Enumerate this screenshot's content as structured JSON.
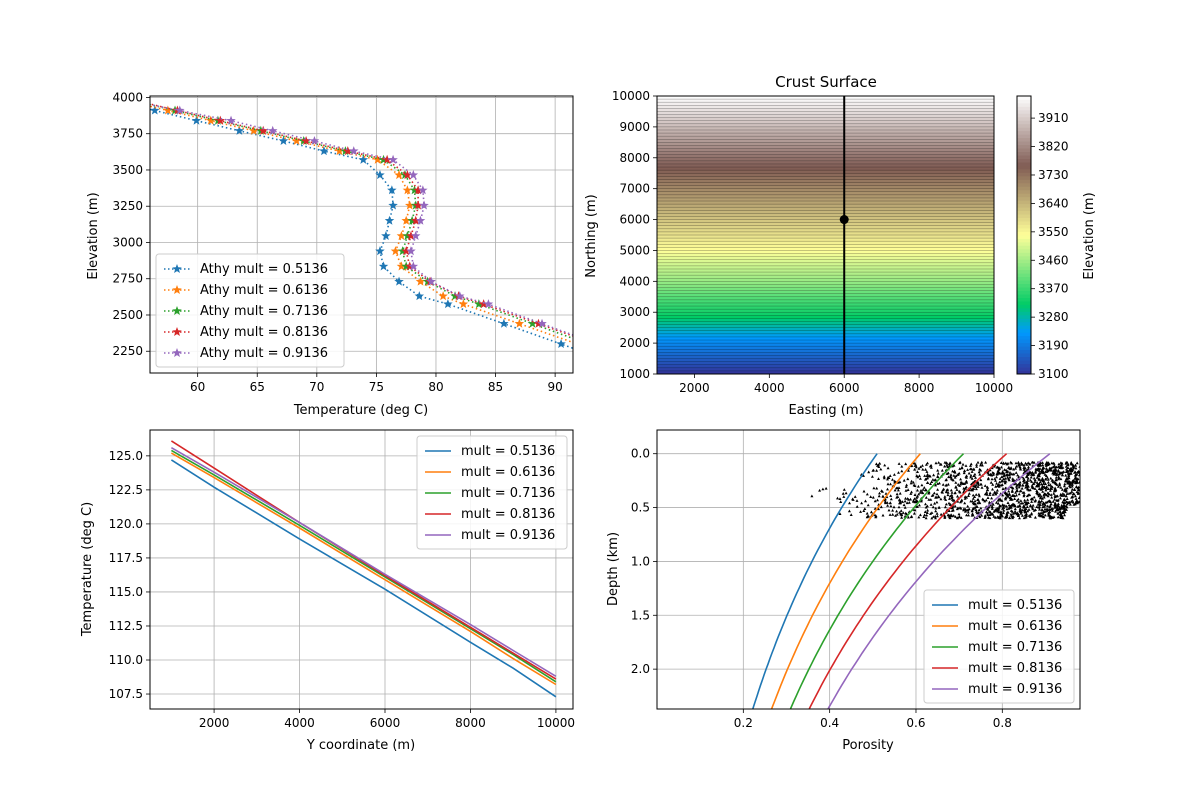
{
  "chart_data": [
    {
      "type": "line",
      "xlabel": "Temperature (deg C)",
      "ylabel": "Elevation (m)",
      "xlim": [
        56,
        91.5
      ],
      "ylim": [
        2100,
        4010
      ],
      "xticks": [
        60,
        65,
        70,
        75,
        80,
        85,
        90
      ],
      "yticks": [
        2250,
        2500,
        2750,
        3000,
        3250,
        3500,
        3750,
        4000
      ],
      "grid": true,
      "legend": "lower-left",
      "marker": "star",
      "linestyle": "dotted",
      "series": [
        {
          "name": "Athy mult = 0.5136",
          "color": "#1f77b4",
          "points": [
            [
              56.4,
              3910
            ],
            [
              59.9,
              3840
            ],
            [
              63.5,
              3770
            ],
            [
              67.2,
              3700
            ],
            [
              70.6,
              3630
            ],
            [
              73.9,
              3570
            ],
            [
              75.3,
              3465
            ],
            [
              76.3,
              3360
            ],
            [
              76.4,
              3255
            ],
            [
              76.1,
              3150
            ],
            [
              75.8,
              3045
            ],
            [
              75.3,
              2940
            ],
            [
              75.6,
              2835
            ],
            [
              76.9,
              2730
            ],
            [
              78.6,
              2630
            ],
            [
              81.0,
              2575
            ],
            [
              85.7,
              2440
            ],
            [
              90.5,
              2300
            ]
          ]
        },
        {
          "name": "Athy mult = 0.6136",
          "color": "#ff7f0e",
          "points": [
            [
              57.5,
              3910
            ],
            [
              61.1,
              3840
            ],
            [
              64.7,
              3770
            ],
            [
              68.3,
              3700
            ],
            [
              71.9,
              3630
            ],
            [
              75.1,
              3570
            ],
            [
              76.9,
              3465
            ],
            [
              77.6,
              3360
            ],
            [
              77.8,
              3255
            ],
            [
              77.5,
              3150
            ],
            [
              77.1,
              3045
            ],
            [
              76.6,
              2940
            ],
            [
              77.1,
              2835
            ],
            [
              78.7,
              2730
            ],
            [
              80.6,
              2630
            ],
            [
              82.3,
              2575
            ],
            [
              87.0,
              2440
            ]
          ]
        },
        {
          "name": "Athy mult = 0.7136",
          "color": "#2ca02c",
          "points": [
            [
              58.1,
              3910
            ],
            [
              61.7,
              3840
            ],
            [
              65.3,
              3770
            ],
            [
              68.9,
              3700
            ],
            [
              72.4,
              3630
            ],
            [
              75.6,
              3570
            ],
            [
              77.4,
              3465
            ],
            [
              78.2,
              3360
            ],
            [
              78.3,
              3255
            ],
            [
              78.0,
              3150
            ],
            [
              77.6,
              3045
            ],
            [
              77.2,
              2940
            ],
            [
              77.5,
              2835
            ],
            [
              79.3,
              2730
            ],
            [
              81.6,
              2630
            ],
            [
              83.6,
              2575
            ],
            [
              88.1,
              2440
            ]
          ]
        },
        {
          "name": "Athy mult = 0.8136",
          "color": "#d62728",
          "points": [
            [
              58.3,
              3910
            ],
            [
              61.9,
              3840
            ],
            [
              65.5,
              3770
            ],
            [
              69.1,
              3700
            ],
            [
              72.6,
              3630
            ],
            [
              75.9,
              3570
            ],
            [
              77.6,
              3465
            ],
            [
              78.5,
              3360
            ],
            [
              78.5,
              3255
            ],
            [
              78.3,
              3150
            ],
            [
              77.9,
              3045
            ],
            [
              77.5,
              2940
            ],
            [
              77.8,
              2835
            ],
            [
              79.5,
              2730
            ],
            [
              81.9,
              2630
            ],
            [
              84.0,
              2575
            ],
            [
              88.6,
              2440
            ]
          ]
        },
        {
          "name": "Athy mult = 0.9136",
          "color": "#9467bd",
          "points": [
            [
              58.5,
              3910
            ],
            [
              62.8,
              3840
            ],
            [
              66.3,
              3770
            ],
            [
              69.8,
              3700
            ],
            [
              73.1,
              3630
            ],
            [
              76.4,
              3570
            ],
            [
              78.1,
              3465
            ],
            [
              78.9,
              3360
            ],
            [
              79.0,
              3255
            ],
            [
              78.7,
              3150
            ],
            [
              78.3,
              3045
            ],
            [
              77.9,
              2940
            ],
            [
              78.1,
              2835
            ],
            [
              79.6,
              2730
            ],
            [
              82.0,
              2630
            ],
            [
              84.4,
              2575
            ],
            [
              88.9,
              2440
            ]
          ]
        }
      ]
    },
    {
      "type": "heatmap",
      "title": "Crust Surface",
      "xlabel": "Easting (m)",
      "ylabel": "Northing (m)",
      "xlim": [
        1000,
        10000
      ],
      "ylim": [
        1000,
        10000
      ],
      "xticks": [
        2000,
        4000,
        6000,
        8000,
        10000
      ],
      "yticks": [
        1000,
        2000,
        3000,
        4000,
        5000,
        6000,
        7000,
        8000,
        9000,
        10000
      ],
      "colorbar": {
        "label": "Elevation (m)",
        "range": [
          3100,
          3980
        ],
        "ticks": [
          3100,
          3190,
          3280,
          3370,
          3460,
          3550,
          3640,
          3730,
          3820,
          3910
        ],
        "colormap": "terrain"
      },
      "surface_profile": {
        "northing": [
          1000,
          2000,
          3000,
          4000,
          5000,
          6000,
          7000,
          8000,
          9000,
          10000
        ],
        "elevation": [
          3100,
          3210,
          3340,
          3450,
          3540,
          3620,
          3700,
          3790,
          3890,
          3980
        ]
      },
      "section_line_easting": 6000,
      "point": [
        6000,
        6000
      ]
    },
    {
      "type": "line",
      "xlabel": "Y coordinate (m)",
      "ylabel": "Temperature (deg C)",
      "xlim": [
        500,
        10400
      ],
      "ylim": [
        106.4,
        126.9
      ],
      "xticks": [
        2000,
        4000,
        6000,
        8000,
        10000
      ],
      "yticks": [
        107.5,
        110.0,
        112.5,
        115.0,
        117.5,
        120.0,
        122.5,
        125.0
      ],
      "grid": true,
      "legend": "upper-right",
      "series": [
        {
          "name": "mult = 0.5136",
          "color": "#1f77b4",
          "points": [
            [
              1000,
              124.7
            ],
            [
              2000,
              122.7
            ],
            [
              4000,
              118.9
            ],
            [
              6000,
              115.2
            ],
            [
              8000,
              111.3
            ],
            [
              9000,
              109.4
            ],
            [
              10000,
              107.3
            ]
          ]
        },
        {
          "name": "mult = 0.6136",
          "color": "#ff7f0e",
          "points": [
            [
              1000,
              125.2
            ],
            [
              2000,
              123.4
            ],
            [
              4000,
              119.7
            ],
            [
              6000,
              115.9
            ],
            [
              8000,
              112.1
            ],
            [
              9000,
              110.1
            ],
            [
              10000,
              108.2
            ]
          ]
        },
        {
          "name": "mult = 0.7136",
          "color": "#2ca02c",
          "points": [
            [
              1000,
              125.4
            ],
            [
              2000,
              123.6
            ],
            [
              4000,
              119.9
            ],
            [
              6000,
              116.1
            ],
            [
              8000,
              112.3
            ],
            [
              9000,
              110.4
            ],
            [
              10000,
              108.4
            ]
          ]
        },
        {
          "name": "mult = 0.8136",
          "color": "#d62728",
          "points": [
            [
              1000,
              126.1
            ],
            [
              2000,
              124.1
            ],
            [
              4000,
              120.1
            ],
            [
              6000,
              116.2
            ],
            [
              8000,
              112.4
            ],
            [
              9000,
              110.5
            ],
            [
              10000,
              108.6
            ]
          ]
        },
        {
          "name": "mult = 0.9136",
          "color": "#9467bd",
          "points": [
            [
              1000,
              125.6
            ],
            [
              2000,
              123.8
            ],
            [
              4000,
              120.1
            ],
            [
              6000,
              116.3
            ],
            [
              8000,
              112.6
            ],
            [
              9000,
              110.7
            ],
            [
              10000,
              108.8
            ]
          ]
        }
      ]
    },
    {
      "type": "line",
      "xlabel": "Porosity",
      "ylabel": "Depth (km)",
      "xlim": [
        0,
        0.98
      ],
      "ylim": [
        2.37,
        -0.22
      ],
      "y_inverted": true,
      "xticks": [
        0.2,
        0.4,
        0.6,
        0.8
      ],
      "yticks": [
        0.0,
        0.5,
        1.0,
        1.5,
        2.0
      ],
      "grid": true,
      "legend": "lower-right",
      "series": [
        {
          "name": "mult = 0.5136",
          "color": "#1f77b4",
          "surface_porosity": 0.51,
          "compaction_km": 2.85
        },
        {
          "name": "mult = 0.6136",
          "color": "#ff7f0e",
          "surface_porosity": 0.61,
          "compaction_km": 2.85
        },
        {
          "name": "mult = 0.7136",
          "color": "#2ca02c",
          "surface_porosity": 0.71,
          "compaction_km": 2.85
        },
        {
          "name": "mult = 0.8136",
          "color": "#d62728",
          "surface_porosity": 0.81,
          "compaction_km": 2.85
        },
        {
          "name": "mult = 0.9136",
          "color": "#9467bd",
          "surface_porosity": 0.91,
          "compaction_km": 2.85
        }
      ],
      "scatter": {
        "color": "#000000",
        "marker": "triangle",
        "clusters": [
          {
            "porosity": [
              0.45,
              0.98
            ],
            "depth": [
              0.08,
              0.32
            ],
            "count": 700
          },
          {
            "porosity": [
              0.35,
              0.98
            ],
            "depth": [
              0.32,
              0.48
            ],
            "count": 450
          },
          {
            "porosity": [
              0.4,
              0.95
            ],
            "depth": [
              0.48,
              0.6
            ],
            "count": 400
          }
        ]
      }
    }
  ]
}
